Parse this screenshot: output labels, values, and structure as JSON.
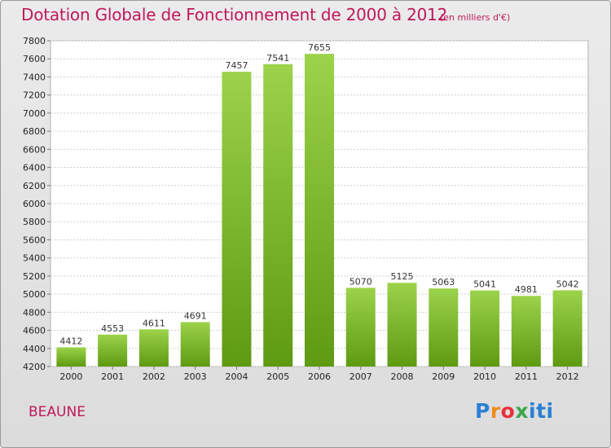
{
  "chart_data": {
    "type": "bar",
    "title": "Dotation Globale de Fonctionnement de 2000 à 2012",
    "subtitle": "(en milliers d'€)",
    "categories": [
      "2000",
      "2001",
      "2002",
      "2003",
      "2004",
      "2005",
      "2006",
      "2007",
      "2008",
      "2009",
      "2010",
      "2011",
      "2012"
    ],
    "values": [
      4412,
      4553,
      4611,
      4691,
      7457,
      7541,
      7655,
      5070,
      5125,
      5063,
      5041,
      4981,
      5042
    ],
    "ylim": [
      4200,
      7800
    ],
    "yticks": [
      4200,
      4400,
      4600,
      4800,
      5000,
      5200,
      5400,
      5600,
      5800,
      6000,
      6200,
      6400,
      6600,
      6800,
      7000,
      7200,
      7400,
      7600,
      7800
    ],
    "grid": true,
    "bar_color": "#7cbf2e"
  },
  "commune": "BEAUNE",
  "logo": {
    "text": "Proxiti"
  }
}
